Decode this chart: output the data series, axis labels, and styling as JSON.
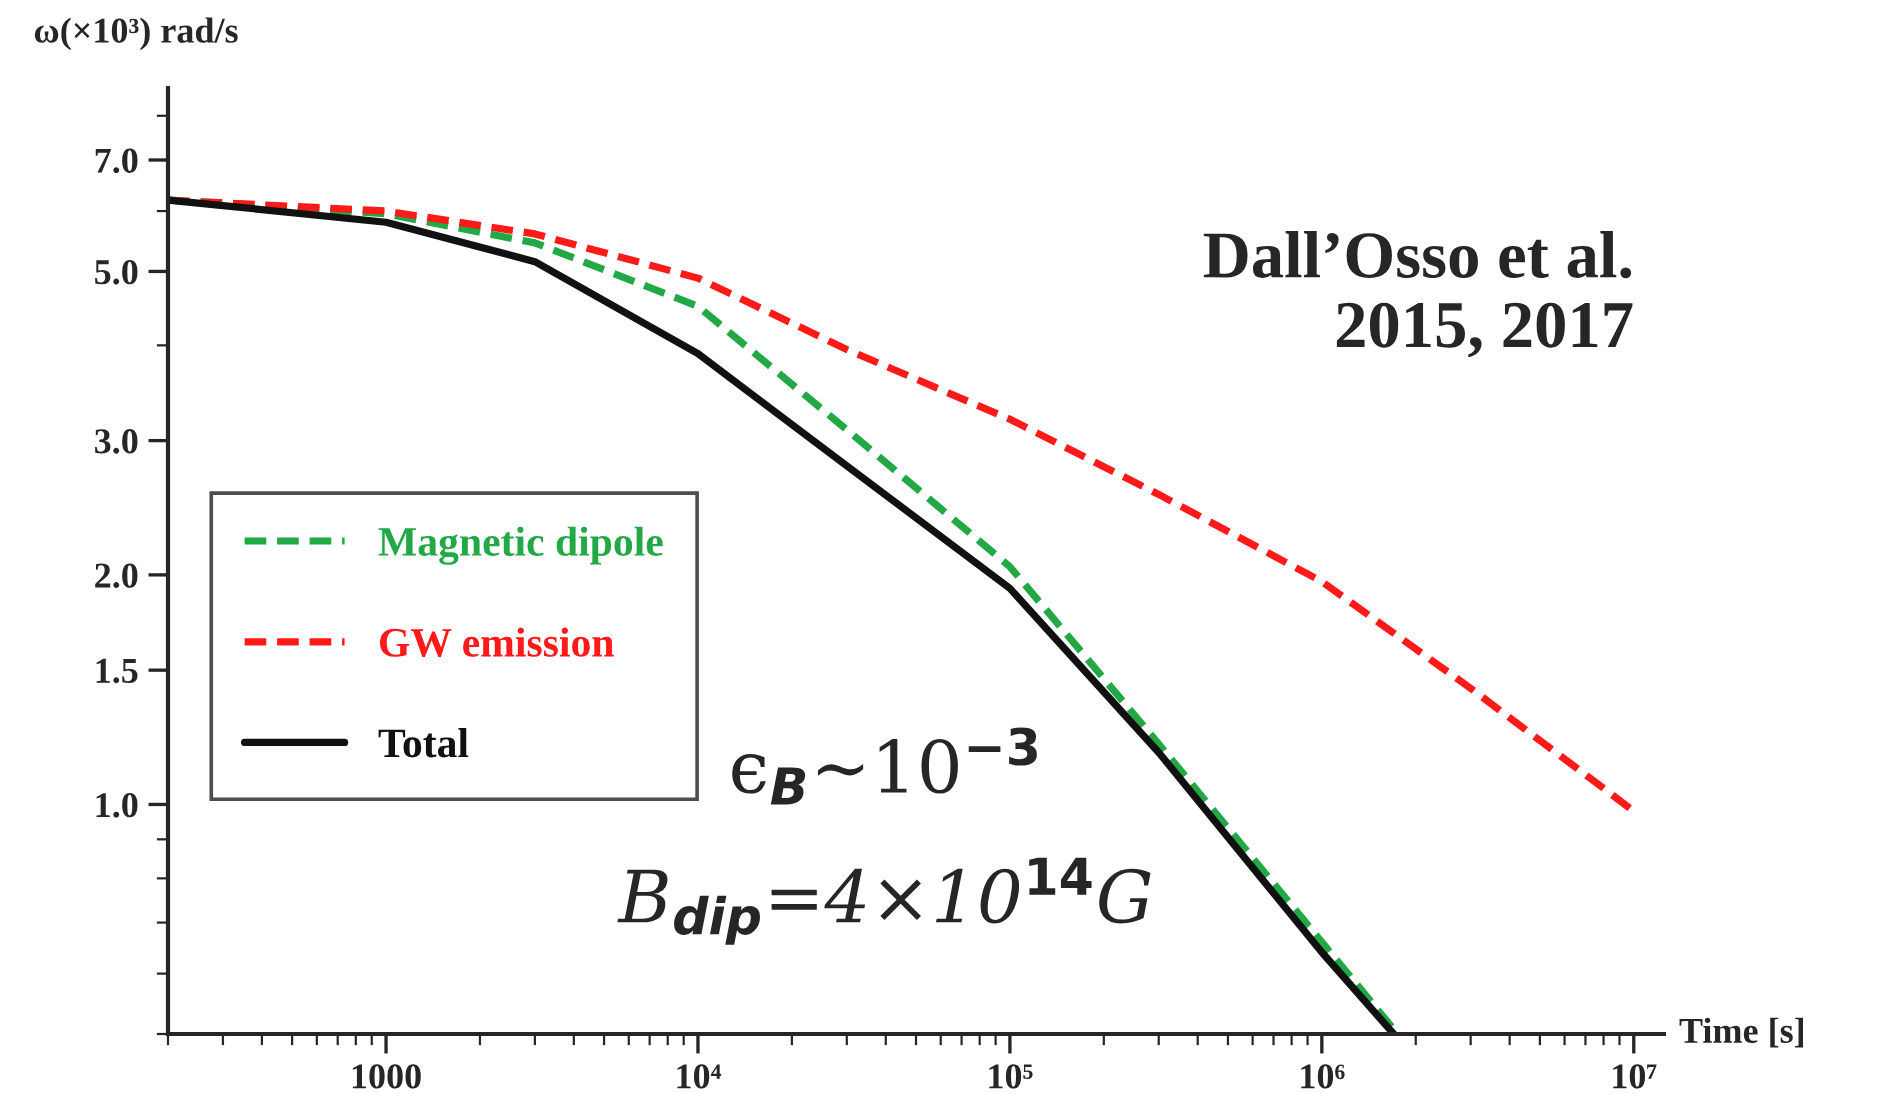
{
  "chart_data": {
    "type": "line",
    "log": "xy",
    "xlabel": "Time [s]",
    "ylabel": "ω(×10³) rad/s",
    "xlim": [
      200,
      12500000
    ],
    "ylim": [
      0.5,
      8.7
    ],
    "xticks": [
      1000,
      {
        "value": 10000,
        "label": "10⁴"
      },
      {
        "value": 100000,
        "label": "10⁵"
      },
      {
        "value": 1000000,
        "label": "10⁶"
      },
      {
        "value": 10000000,
        "label": "10⁷"
      }
    ],
    "yticks": [
      {
        "value": 1,
        "label": "1.0"
      },
      {
        "value": 1.5,
        "label": "1.5"
      },
      {
        "value": 2,
        "label": "2.0"
      },
      {
        "value": 3,
        "label": "3.0"
      },
      {
        "value": 5,
        "label": "5.0"
      },
      {
        "value": 7,
        "label": "7.0"
      }
    ],
    "grid": false,
    "legend": "left",
    "series": [
      {
        "name": "Magnetic dipole",
        "color": "#22a845",
        "line_style": "dashed",
        "x": [
          200,
          300,
          1000,
          3000,
          10000,
          30000,
          100000,
          300000,
          1000000,
          1750000
        ],
        "values": [
          6.2,
          6.15,
          5.95,
          5.45,
          4.5,
          3.1,
          2.05,
          1.2,
          0.66,
          0.5
        ]
      },
      {
        "name": "GW emission",
        "color": "#ff1a1a",
        "line_style": "dashed",
        "x": [
          200,
          300,
          1000,
          3000,
          10000,
          30000,
          100000,
          300000,
          1000000,
          3000000,
          10000000
        ],
        "values": [
          6.2,
          6.15,
          6.0,
          5.6,
          4.9,
          3.95,
          3.2,
          2.55,
          1.96,
          1.42,
          0.98
        ]
      },
      {
        "name": "Total",
        "color": "#111111",
        "line_style": "solid",
        "x": [
          200,
          300,
          1000,
          3000,
          10000,
          30000,
          100000,
          300000,
          1000000,
          1700000
        ],
        "values": [
          6.2,
          6.1,
          5.8,
          5.15,
          3.9,
          2.78,
          1.92,
          1.17,
          0.64,
          0.5
        ]
      }
    ],
    "annotations": [
      "Dall’Osso et al.\n2015, 2017",
      "ϵ$_{B}$∼10$^{−3}$",
      "B$_{dip}$=4×10$^{14}$G"
    ]
  }
}
